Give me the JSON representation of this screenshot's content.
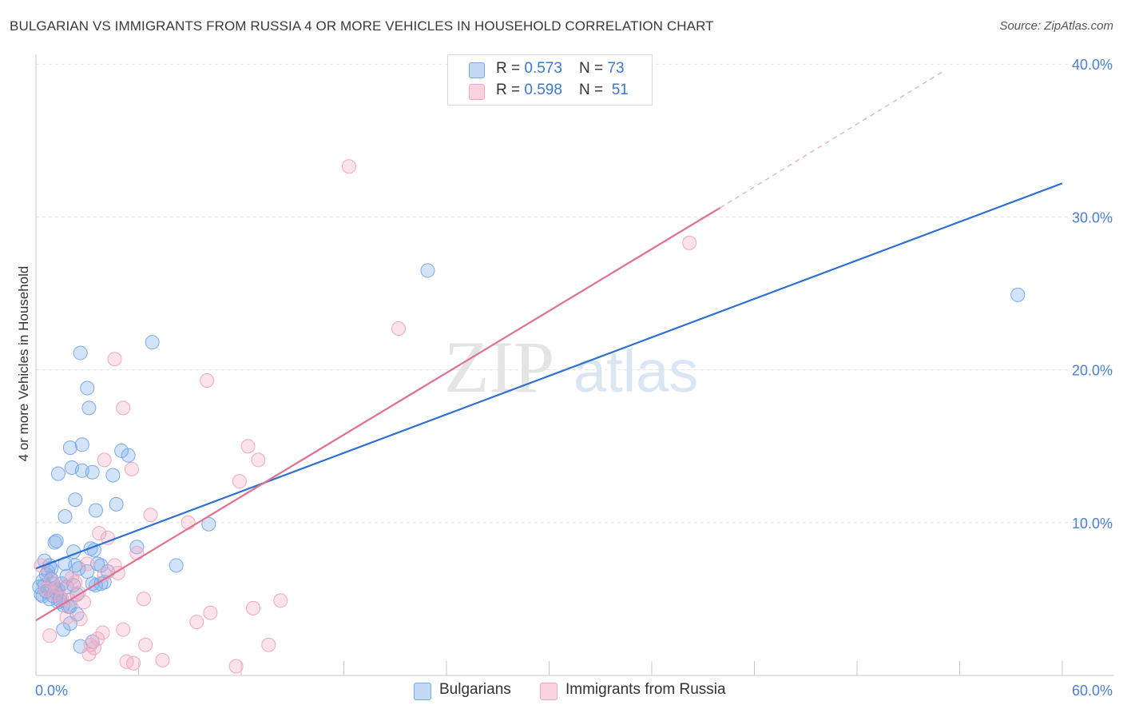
{
  "header": {
    "title": "BULGARIAN VS IMMIGRANTS FROM RUSSIA 4 OR MORE VEHICLES IN HOUSEHOLD CORRELATION CHART",
    "source": "Source: ZipAtlas.com"
  },
  "legend": {
    "series1": {
      "r_label": "R = ",
      "r_value": "0.573",
      "n_label": "N = ",
      "n_value": "73"
    },
    "series2": {
      "r_label": "R = ",
      "r_value": "0.598",
      "n_label": "N = ",
      "n_value": "51"
    }
  },
  "watermark": {
    "zip": "ZIP",
    "atlas": "atlas"
  },
  "colors": {
    "blue": "#7aaae8",
    "blue_line": "#2f72d2",
    "pink": "#f4a7bf",
    "pink_line": "#e0708f",
    "accent": "#4a7fd4"
  },
  "chart_data": {
    "type": "scatter",
    "title": "BULGARIAN VS IMMIGRANTS FROM RUSSIA 4 OR MORE VEHICLES IN HOUSEHOLD CORRELATION CHART",
    "xlabel": "",
    "ylabel": "4 or more Vehicles in Household",
    "xlim": [
      0,
      60
    ],
    "ylim": [
      0,
      40
    ],
    "x_tick_labels": [
      "0.0%",
      "60.0%"
    ],
    "y_ticks": [
      10,
      20,
      30,
      40
    ],
    "y_tick_labels": [
      "10.0%",
      "20.0%",
      "30.0%",
      "40.0%"
    ],
    "legend_position": "bottom",
    "series": [
      {
        "name": "Bulgarians",
        "color": "#7aaae8",
        "trend": {
          "x0": 0,
          "y0": 7.0,
          "x1": 60,
          "y1": 32.2
        },
        "points": [
          [
            0.2,
            5.8
          ],
          [
            0.3,
            5.3
          ],
          [
            0.4,
            6.2
          ],
          [
            0.5,
            5.9
          ],
          [
            0.6,
            5.5
          ],
          [
            0.7,
            6.8
          ],
          [
            0.8,
            5.0
          ],
          [
            0.9,
            6.3
          ],
          [
            1.0,
            5.2
          ],
          [
            1.1,
            5.7
          ],
          [
            0.5,
            7.5
          ],
          [
            0.8,
            7.2
          ],
          [
            1.2,
            5.4
          ],
          [
            1.3,
            4.8
          ],
          [
            1.4,
            5.1
          ],
          [
            1.5,
            6.0
          ],
          [
            1.6,
            4.6
          ],
          [
            1.7,
            7.3
          ],
          [
            1.8,
            5.8
          ],
          [
            2.0,
            4.5
          ],
          [
            1.1,
            8.7
          ],
          [
            1.2,
            8.8
          ],
          [
            2.2,
            8.1
          ],
          [
            2.3,
            7.2
          ],
          [
            2.5,
            7.0
          ],
          [
            3.2,
            8.3
          ],
          [
            3.4,
            8.2
          ],
          [
            3.6,
            7.3
          ],
          [
            3.0,
            6.8
          ],
          [
            3.3,
            6.0
          ],
          [
            2.3,
            11.5
          ],
          [
            1.7,
            10.4
          ],
          [
            3.5,
            10.8
          ],
          [
            4.7,
            11.2
          ],
          [
            1.3,
            13.2
          ],
          [
            2.1,
            13.6
          ],
          [
            2.7,
            13.4
          ],
          [
            3.3,
            13.3
          ],
          [
            4.5,
            13.1
          ],
          [
            2.0,
            14.9
          ],
          [
            2.7,
            15.1
          ],
          [
            5.0,
            14.7
          ],
          [
            5.4,
            14.4
          ],
          [
            3.1,
            17.5
          ],
          [
            3.0,
            18.8
          ],
          [
            2.6,
            21.1
          ],
          [
            6.8,
            21.8
          ],
          [
            3.8,
            7.2
          ],
          [
            4.0,
            6.1
          ],
          [
            4.2,
            6.8
          ],
          [
            5.9,
            8.4
          ],
          [
            8.2,
            7.2
          ],
          [
            10.1,
            9.9
          ],
          [
            1.6,
            3.0
          ],
          [
            2.0,
            3.4
          ],
          [
            2.4,
            4.0
          ],
          [
            2.6,
            1.9
          ],
          [
            3.3,
            2.2
          ],
          [
            1.4,
            4.9
          ],
          [
            1.9,
            4.5
          ],
          [
            0.4,
            5.2
          ],
          [
            0.6,
            6.6
          ],
          [
            0.9,
            7.0
          ],
          [
            1.0,
            6.0
          ],
          [
            1.3,
            5.6
          ],
          [
            1.5,
            5.0
          ],
          [
            1.8,
            6.5
          ],
          [
            2.2,
            5.9
          ],
          [
            2.4,
            5.3
          ],
          [
            3.5,
            5.9
          ],
          [
            3.8,
            6.0
          ],
          [
            22.9,
            26.5
          ],
          [
            57.4,
            24.9
          ]
        ]
      },
      {
        "name": "Immigrants from Russia",
        "color": "#f4a7bf",
        "trend": {
          "x0": 0,
          "y0": 3.6,
          "x1": 40,
          "y1": 30.6,
          "dashed_to_x": 53,
          "dashed_to_y": 39.5
        },
        "points": [
          [
            0.3,
            7.2
          ],
          [
            0.6,
            5.6
          ],
          [
            0.8,
            2.6
          ],
          [
            1.1,
            5.3
          ],
          [
            1.5,
            5.0
          ],
          [
            1.8,
            3.8
          ],
          [
            2.0,
            4.9
          ],
          [
            2.3,
            6.1
          ],
          [
            2.5,
            5.4
          ],
          [
            2.8,
            4.8
          ],
          [
            3.0,
            7.3
          ],
          [
            3.2,
            2.0
          ],
          [
            3.4,
            1.8
          ],
          [
            3.7,
            9.3
          ],
          [
            3.9,
            2.8
          ],
          [
            4.0,
            6.6
          ],
          [
            4.2,
            9.0
          ],
          [
            4.6,
            7.2
          ],
          [
            4.0,
            14.1
          ],
          [
            5.1,
            17.5
          ],
          [
            4.6,
            20.7
          ],
          [
            5.1,
            3.0
          ],
          [
            5.3,
            0.9
          ],
          [
            5.6,
            13.5
          ],
          [
            5.7,
            0.8
          ],
          [
            5.9,
            8.0
          ],
          [
            6.3,
            5.0
          ],
          [
            6.4,
            2.0
          ],
          [
            6.7,
            10.5
          ],
          [
            7.4,
            1.0
          ],
          [
            8.9,
            10.0
          ],
          [
            9.4,
            3.5
          ],
          [
            10.0,
            19.3
          ],
          [
            10.2,
            4.1
          ],
          [
            11.7,
            0.6
          ],
          [
            11.9,
            12.7
          ],
          [
            12.4,
            15.0
          ],
          [
            12.7,
            4.4
          ],
          [
            13.0,
            14.1
          ],
          [
            13.6,
            2.0
          ],
          [
            14.3,
            4.9
          ],
          [
            18.3,
            33.3
          ],
          [
            21.2,
            22.7
          ],
          [
            38.2,
            28.3
          ],
          [
            1.4,
            5.8
          ],
          [
            2.1,
            6.4
          ],
          [
            0.9,
            6.2
          ],
          [
            2.6,
            3.7
          ],
          [
            3.1,
            1.4
          ],
          [
            3.6,
            2.4
          ],
          [
            4.8,
            6.7
          ]
        ]
      }
    ]
  }
}
